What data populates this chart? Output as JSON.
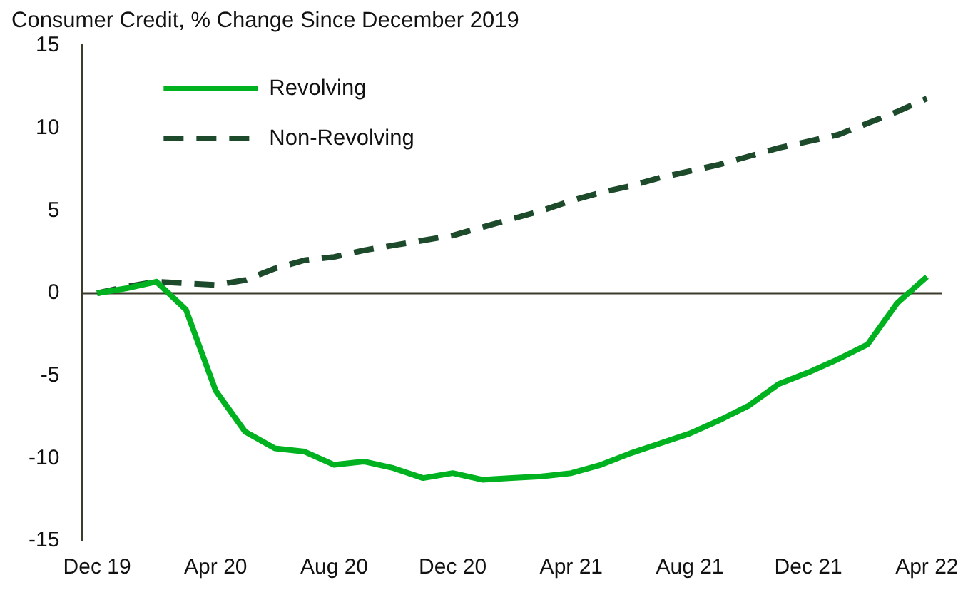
{
  "chart_data": {
    "type": "line",
    "title": "Consumer Credit, % Change Since December 2019",
    "categories": [
      "Dec 19",
      null,
      null,
      null,
      "Apr 20",
      null,
      null,
      null,
      "Aug 20",
      null,
      null,
      null,
      "Dec 20",
      null,
      null,
      null,
      "Apr 21",
      null,
      null,
      null,
      "Aug 21",
      null,
      null,
      null,
      "Dec 21",
      null,
      null,
      null,
      "Apr 22"
    ],
    "series": [
      {
        "name": "Revolving",
        "color": "#00b220",
        "line_style": "solid",
        "values": [
          0,
          0.3,
          0.7,
          -1.0,
          -5.9,
          -8.4,
          -9.4,
          -9.6,
          -10.4,
          -10.2,
          -10.6,
          -11.2,
          -10.9,
          -11.3,
          -11.2,
          -11.1,
          -10.9,
          -10.4,
          -9.7,
          -9.1,
          -8.5,
          -7.7,
          -6.8,
          -5.5,
          -4.8,
          -4.0,
          -3.1,
          -0.6,
          1.0
        ]
      },
      {
        "name": "Non-Revolving",
        "color": "#1c4a2a",
        "line_style": "dashed",
        "values": [
          0,
          0.4,
          0.7,
          0.6,
          0.5,
          0.8,
          1.5,
          2.0,
          2.2,
          2.6,
          2.9,
          3.2,
          3.5,
          4.0,
          4.5,
          5.0,
          5.6,
          6.1,
          6.5,
          7.0,
          7.4,
          7.8,
          8.3,
          8.8,
          9.2,
          9.6,
          10.3,
          11.0,
          11.8
        ]
      }
    ],
    "ylim": [
      -15,
      15
    ],
    "yticks": [
      -15,
      -10,
      -5,
      0,
      5,
      10,
      15
    ],
    "grid": false,
    "legend": "top left",
    "marker": "none",
    "ref_lines": [
      {
        "axis": "y",
        "value": 0,
        "color": "#3c3c2c"
      }
    ]
  }
}
